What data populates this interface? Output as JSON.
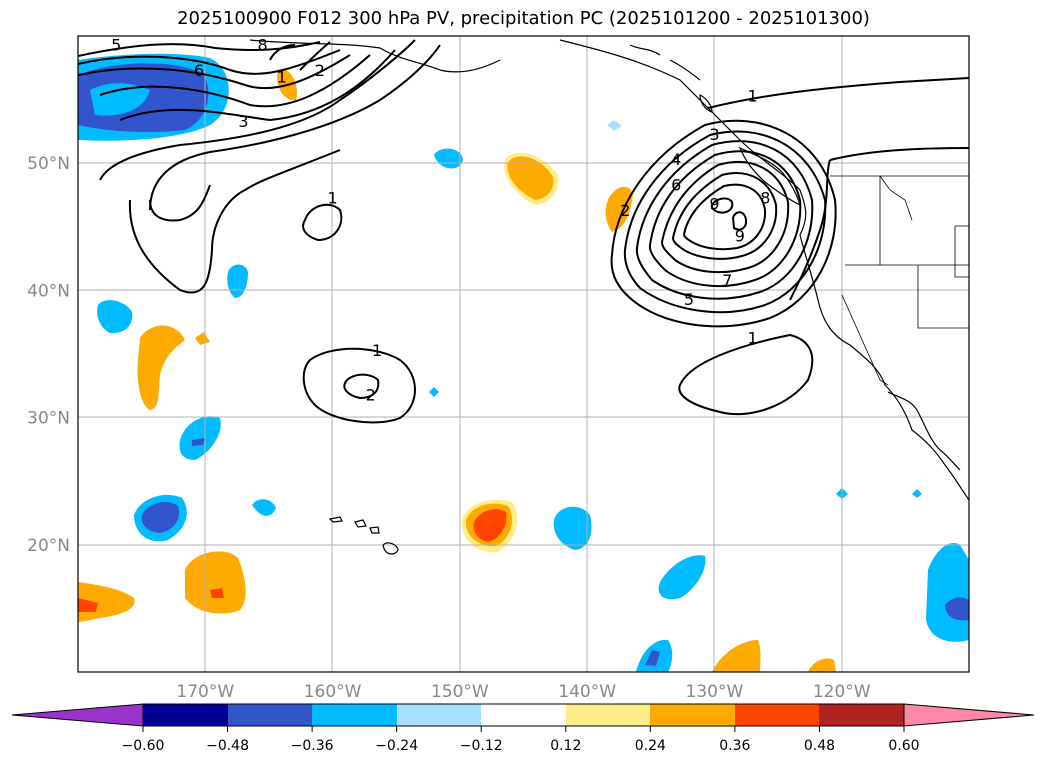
{
  "title": "2025100900 F012 300 hPa PV, precipitation PC (2025101200 - 2025101300)",
  "colors": {
    "grid": "#b0b0b0",
    "land_outline": "#000000",
    "tick_text": "#888888",
    "colorbar": [
      "#9933cc",
      "#000099",
      "#3355cc",
      "#00bbff",
      "#aae0ff",
      "#ffffff",
      "#ffee88",
      "#ffaa00",
      "#ff4400",
      "#b22222",
      "#ff88aa"
    ]
  },
  "chart_data": {
    "type": "map",
    "projection": "plate-carree",
    "lon_range": [
      -180,
      -110
    ],
    "lat_range": [
      10,
      60
    ],
    "lat_ticks": [
      {
        "value": 20,
        "label": "20°N"
      },
      {
        "value": 30,
        "label": "30°N"
      },
      {
        "value": 40,
        "label": "40°N"
      },
      {
        "value": 50,
        "label": "50°N"
      }
    ],
    "lon_ticks": [
      {
        "value": -170,
        "label": "170°W"
      },
      {
        "value": -160,
        "label": "160°W"
      },
      {
        "value": -150,
        "label": "150°W"
      },
      {
        "value": -140,
        "label": "140°W"
      },
      {
        "value": -130,
        "label": "130°W"
      },
      {
        "value": -120,
        "label": "120°W"
      }
    ],
    "colorbar": {
      "ticks": [
        "−0.60",
        "−0.48",
        "−0.36",
        "−0.24",
        "−0.12",
        "0.12",
        "0.24",
        "0.36",
        "0.48",
        "0.60"
      ],
      "extend": "both"
    },
    "pv_contour_labels": [
      {
        "text": "5",
        "lon": -177,
        "lat": 59
      },
      {
        "text": "6",
        "lon": -170.5,
        "lat": 57
      },
      {
        "text": "8",
        "lon": -165.5,
        "lat": 59
      },
      {
        "text": "1",
        "lon": -164,
        "lat": 56.5
      },
      {
        "text": "2",
        "lon": -161,
        "lat": 57
      },
      {
        "text": "3",
        "lon": -167,
        "lat": 53
      },
      {
        "text": "1",
        "lon": -160,
        "lat": 47
      },
      {
        "text": "1",
        "lon": -156.5,
        "lat": 35
      },
      {
        "text": "2",
        "lon": -157,
        "lat": 31.5
      },
      {
        "text": "1",
        "lon": -127,
        "lat": 55
      },
      {
        "text": "3",
        "lon": -130,
        "lat": 52
      },
      {
        "text": "4",
        "lon": -133,
        "lat": 50
      },
      {
        "text": "6",
        "lon": -133,
        "lat": 48
      },
      {
        "text": "8",
        "lon": -126,
        "lat": 47
      },
      {
        "text": "9",
        "lon": -130,
        "lat": 46.5
      },
      {
        "text": "9",
        "lon": -128,
        "lat": 44
      },
      {
        "text": "7",
        "lon": -129,
        "lat": 40.5
      },
      {
        "text": "5",
        "lon": -132,
        "lat": 39
      },
      {
        "text": "2",
        "lon": -137,
        "lat": 46
      },
      {
        "text": "1",
        "lon": -127,
        "lat": 36
      }
    ]
  }
}
